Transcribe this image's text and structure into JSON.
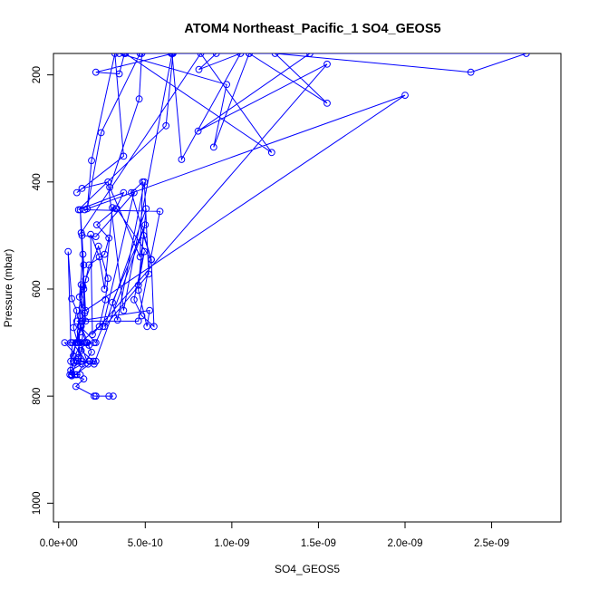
{
  "chart_data": {
    "type": "line",
    "title": "ATOM4 Northeast_Pacific_1 SO4_GEOS5",
    "xlabel": "SO4_GEOS5",
    "ylabel": "Pressure (mbar)",
    "xlim": [
      -3e-11,
      2.9e-09
    ],
    "ylim": [
      1035,
      160
    ],
    "y_reversed": true,
    "x_ticks": [
      0,
      5e-10,
      1e-09,
      1.5e-09,
      2e-09,
      2.5e-09
    ],
    "x_tick_labels": [
      "0.0e+00",
      "5.0e-10",
      "1.0e-09",
      "1.5e-09",
      "2.0e-09",
      "2.5e-09"
    ],
    "y_ticks": [
      200,
      400,
      600,
      800,
      1000
    ],
    "y_tick_labels": [
      "200",
      "400",
      "600",
      "800",
      "1000"
    ],
    "grid": false,
    "legend": "none",
    "color": "#0000ff",
    "series": [
      {
        "values": [
          [
            2.15e-10,
            800
          ],
          [
            3.15e-10,
            800
          ],
          [
            2.15e-10,
            800
          ],
          [
            2.9e-10,
            800
          ],
          [
            2.05e-10,
            800
          ],
          [
            1e-10,
            782
          ],
          [
            1.45e-10,
            768
          ],
          [
            7.5e-11,
            762
          ],
          [
            7e-11,
            752
          ],
          [
            1.35e-10,
            740
          ],
          [
            9e-11,
            738
          ],
          [
            8.5e-11,
            725
          ],
          [
            1e-10,
            700
          ],
          [
            1.25e-10,
            680
          ],
          [
            1.55e-10,
            660
          ],
          [
            1.45e-10,
            600
          ],
          [
            1.75e-10,
            555
          ],
          [
            2.65e-10,
            535
          ],
          [
            2.9e-10,
            505
          ],
          [
            2.2e-10,
            480
          ],
          [
            3.3e-10,
            450
          ],
          [
            3.75e-10,
            420
          ],
          [
            1.15e-10,
            452
          ],
          [
            6.2e-10,
            295
          ],
          [
            6.6e-10,
            160
          ],
          [
            2.15e-10,
            195
          ],
          [
            3.5e-10,
            198
          ],
          [
            3.8e-10,
            160
          ],
          [
            4.7e-10,
            160
          ],
          [
            2.45e-10,
            308
          ],
          [
            1.65e-10,
            450
          ],
          [
            1.9e-10,
            360
          ],
          [
            3.25e-10,
            160
          ],
          [
            3.75e-10,
            352
          ],
          [
            1.05e-10,
            420
          ],
          [
            1.35e-10,
            412
          ],
          [
            2.85e-10,
            400
          ],
          [
            3.75e-10,
            640
          ],
          [
            6.55e-10,
            160
          ],
          [
            7.1e-10,
            358
          ],
          [
            1.05e-09,
            160
          ],
          [
            8.1e-10,
            190
          ],
          [
            9.1e-10,
            160
          ],
          [
            1.1e-09,
            160
          ],
          [
            1.45e-09,
            160
          ],
          [
            8.05e-10,
            305
          ],
          [
            1.55e-09,
            180
          ],
          [
            1.95e-10,
            685
          ],
          [
            1.85e-10,
            498
          ],
          [
            2.35e-10,
            540
          ],
          [
            2.65e-10,
            600
          ],
          [
            3.1e-10,
            448
          ],
          [
            3.35e-10,
            450
          ],
          [
            5.35e-10,
            545
          ],
          [
            4.2e-10,
            420
          ],
          [
            4.85e-10,
            400
          ],
          [
            4.7e-10,
            540
          ],
          [
            2.95e-10,
            410
          ],
          [
            4.65e-10,
            245
          ],
          [
            4.8e-10,
            160
          ],
          [
            2.7e-09,
            160
          ],
          [
            2.38e-09,
            195
          ],
          [
            1.25e-09,
            160
          ],
          [
            1.55e-09,
            253
          ],
          [
            1.1e-09,
            160
          ],
          [
            8.95e-10,
            335
          ],
          [
            9.7e-10,
            218
          ],
          [
            3.5e-10,
            160
          ],
          [
            6.5e-10,
            160
          ],
          [
            3.85e-10,
            160
          ],
          [
            1.23e-09,
            345
          ],
          [
            8.2e-10,
            160
          ],
          [
            1.3e-10,
            495
          ],
          [
            1.55e-10,
            640
          ],
          [
            2e-09,
            238
          ],
          [
            1.5e-10,
            452
          ],
          [
            5.85e-10,
            455
          ],
          [
            4.6e-10,
            660
          ],
          [
            1.05e-10,
            660
          ],
          [
            5.25e-10,
            640
          ],
          [
            5.1e-10,
            670
          ],
          [
            4.6e-10,
            602
          ],
          [
            4.9e-10,
            500
          ],
          [
            5.35e-10,
            545
          ],
          [
            5.5e-10,
            670
          ],
          [
            4.8e-10,
            650
          ],
          [
            4.35e-10,
            620
          ],
          [
            4.95e-10,
            530
          ],
          [
            4.6e-10,
            593
          ],
          [
            5.05e-10,
            450
          ],
          [
            2.65e-10,
            670
          ],
          [
            5.2e-10,
            572
          ],
          [
            4.95e-10,
            400
          ],
          [
            3.4e-10,
            658
          ],
          [
            3.1e-10,
            625
          ],
          [
            5e-10,
            480
          ],
          [
            2.05e-10,
            740
          ],
          [
            1.1e-10,
            735
          ],
          [
            2.15e-10,
            735
          ],
          [
            1.8e-10,
            735
          ],
          [
            1.3e-10,
            735
          ],
          [
            1.15e-10,
            700
          ],
          [
            2.05e-10,
            700
          ],
          [
            1.6e-10,
            700
          ],
          [
            1.25e-10,
            670
          ],
          [
            2.15e-10,
            700
          ],
          [
            2.55e-10,
            670
          ],
          [
            4.35e-10,
            420
          ],
          [
            2.15e-10,
            502
          ],
          [
            1.35e-10,
            500
          ],
          [
            1.4e-10,
            535
          ],
          [
            1.2e-10,
            615
          ],
          [
            1.35e-10,
            635
          ],
          [
            1.3e-10,
            592
          ],
          [
            1.05e-10,
            700
          ],
          [
            1.65e-10,
            700
          ],
          [
            1.9e-10,
            718
          ],
          [
            1.05e-10,
            760
          ],
          [
            7.5e-11,
            760
          ],
          [
            1.5e-10,
            700
          ],
          [
            7e-11,
            700
          ],
          [
            5.5e-11,
            530
          ],
          [
            7.5e-11,
            618
          ],
          [
            1.05e-10,
            640
          ],
          [
            8.5e-11,
            672
          ],
          [
            1.1e-10,
            700
          ],
          [
            3.5e-11,
            700
          ],
          [
            1.15e-10,
            728
          ],
          [
            1.25e-10,
            650
          ],
          [
            1.4e-10,
            595
          ],
          [
            1.45e-10,
            555
          ],
          [
            1.25e-10,
            452
          ],
          [
            1.5e-10,
            645
          ],
          [
            1.3e-10,
            715
          ],
          [
            2e-10,
            735
          ],
          [
            9.5e-11,
            760
          ],
          [
            7e-11,
            735
          ],
          [
            1.35e-10,
            660
          ],
          [
            1.1e-10,
            700
          ],
          [
            1.75e-10,
            705
          ],
          [
            1.3e-10,
            670
          ],
          [
            1.55e-10,
            582
          ],
          [
            2.3e-10,
            520
          ],
          [
            2.85e-10,
            580
          ],
          [
            2.7e-10,
            620
          ],
          [
            2.35e-10,
            670
          ],
          [
            1.25e-10,
            700
          ],
          [
            8.5e-11,
            735
          ],
          [
            7.5e-11,
            760
          ],
          [
            1.25e-10,
            760
          ],
          [
            6.5e-11,
            760
          ],
          [
            8e-11,
            700
          ],
          [
            1.7e-10,
            740
          ],
          [
            1.25e-10,
            700
          ]
        ]
      }
    ]
  }
}
